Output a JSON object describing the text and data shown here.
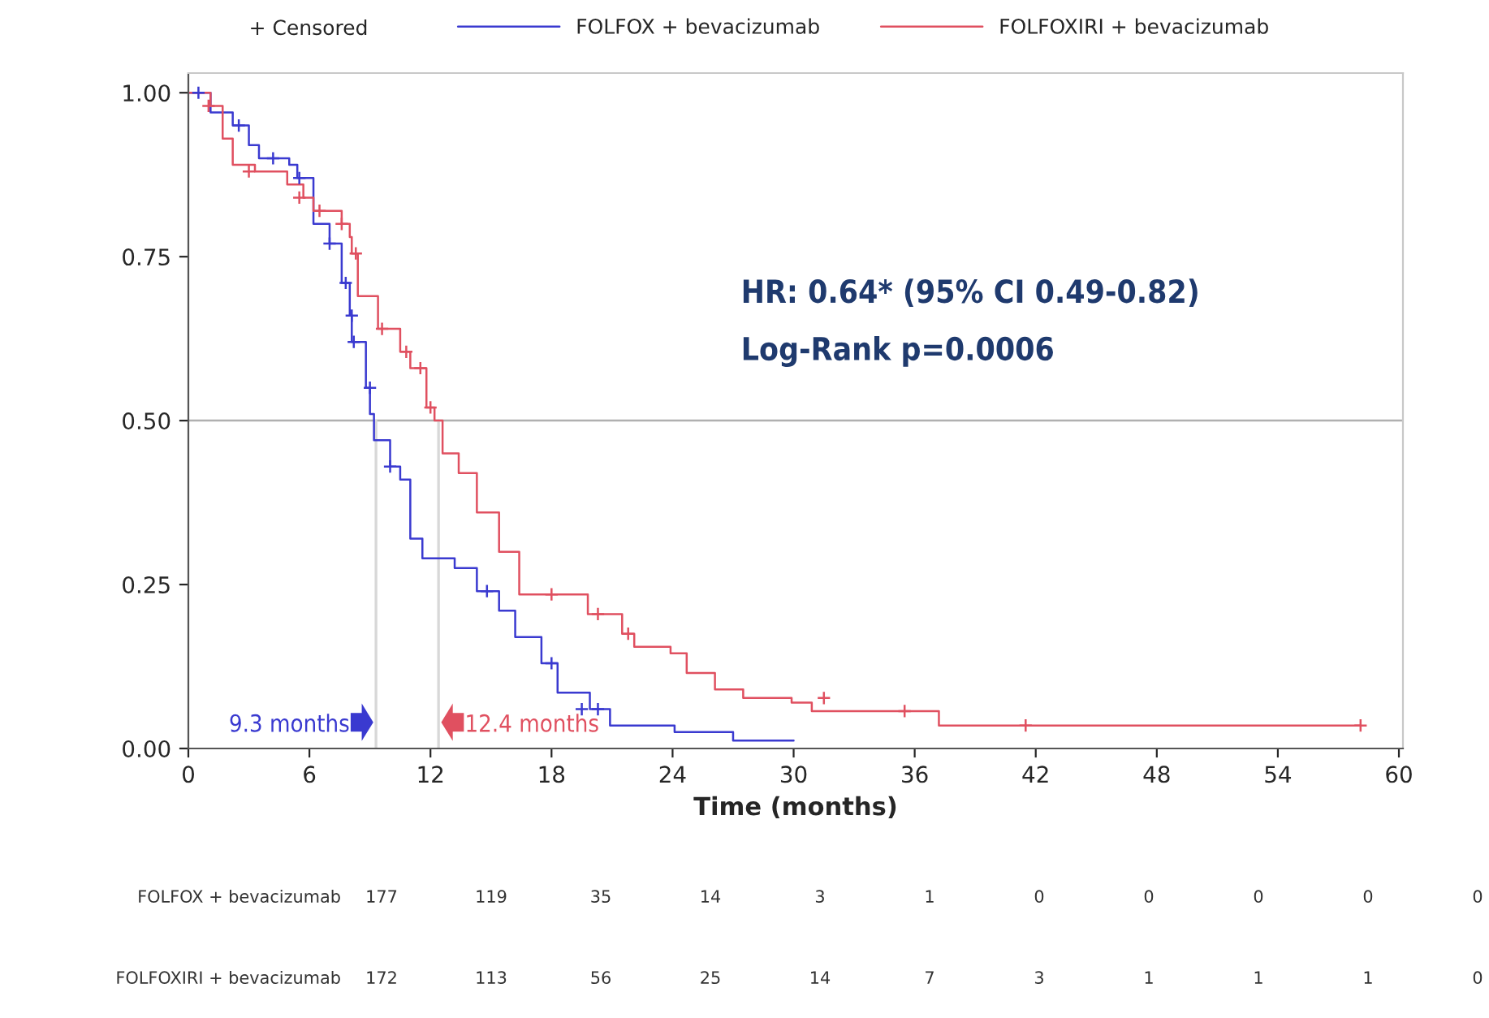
{
  "chart_data": {
    "type": "step",
    "xlabel": "Time (months)",
    "xlim": [
      0,
      60.2
    ],
    "xticks": [
      0,
      6,
      12,
      18,
      24,
      30,
      36,
      42,
      48,
      54,
      60
    ],
    "ylim": [
      0,
      1.03
    ],
    "yticks": [
      {
        "value": 0,
        "label": "0.00"
      },
      {
        "value": 0.25,
        "label": "0.25"
      },
      {
        "value": 0.5,
        "label": "0.50"
      },
      {
        "value": 0.75,
        "label": "0.75"
      },
      {
        "value": 1,
        "label": "1.00"
      }
    ],
    "grid": false,
    "legend": "top",
    "series": [
      {
        "name": "FOLFOX + bevacizumab",
        "color": "#3a3ad0",
        "x": [
          0,
          1.1,
          2.2,
          3.0,
          3.5,
          5.0,
          5.4,
          6.2,
          7.0,
          7.6,
          8.0,
          8.1,
          8.8,
          9.0,
          9.2,
          10.0,
          10.5,
          11.0,
          11.6,
          13.2,
          14.3,
          15.4,
          16.2,
          17.5,
          18.3,
          19.9,
          20.9,
          24.1,
          27.0,
          30.0
        ],
        "values": [
          1.0,
          0.97,
          0.95,
          0.92,
          0.9,
          0.89,
          0.87,
          0.8,
          0.77,
          0.71,
          0.66,
          0.62,
          0.55,
          0.51,
          0.47,
          0.43,
          0.41,
          0.32,
          0.29,
          0.275,
          0.24,
          0.21,
          0.17,
          0.13,
          0.085,
          0.06,
          0.035,
          0.025,
          0.012,
          0.012
        ]
      },
      {
        "name": "FOLFOXIRI + bevacizumab",
        "color": "#e05060",
        "x": [
          0,
          1.1,
          1.7,
          2.2,
          3.3,
          4.9,
          5.7,
          6.2,
          7.6,
          8.0,
          8.1,
          8.4,
          9.4,
          10.5,
          11.0,
          11.8,
          12.2,
          12.6,
          13.4,
          14.3,
          15.4,
          16.4,
          19.8,
          21.5,
          22.1,
          23.9,
          24.7,
          26.1,
          27.5,
          29.9,
          30.9,
          37.2,
          58.1
        ],
        "values": [
          1.0,
          0.98,
          0.93,
          0.89,
          0.88,
          0.86,
          0.84,
          0.82,
          0.8,
          0.78,
          0.755,
          0.69,
          0.64,
          0.605,
          0.58,
          0.52,
          0.5,
          0.45,
          0.42,
          0.36,
          0.3,
          0.235,
          0.205,
          0.175,
          0.155,
          0.145,
          0.115,
          0.09,
          0.077,
          0.07,
          0.057,
          0.035,
          0.035
        ]
      },
      {
        "color": "#3a3ad0",
        "type": "scatter",
        "marker": "cross",
        "x": [
          0.5,
          2.5,
          4.2,
          5.5,
          7.0,
          7.8,
          8.1,
          8.2,
          9.0,
          10.0,
          14.8,
          18.0,
          19.5,
          20.3
        ],
        "values": [
          1.0,
          0.95,
          0.9,
          0.87,
          0.77,
          0.71,
          0.66,
          0.62,
          0.55,
          0.43,
          0.24,
          0.13,
          0.06,
          0.06
        ]
      },
      {
        "color": "#e05060",
        "type": "scatter",
        "marker": "cross",
        "x": [
          1.0,
          3.0,
          5.5,
          6.5,
          7.6,
          8.3,
          9.6,
          10.8,
          11.5,
          12.0,
          18.0,
          20.3,
          21.8,
          31.5,
          35.5,
          41.5,
          58.1
        ],
        "values": [
          0.98,
          0.88,
          0.84,
          0.82,
          0.8,
          0.755,
          0.64,
          0.605,
          0.58,
          0.52,
          0.235,
          0.205,
          0.175,
          0.077,
          0.057,
          0.035,
          0.035
        ]
      }
    ],
    "ref_lines": [
      {
        "axis": "y",
        "value": 0.5,
        "color": "#b0b0b0"
      },
      {
        "axis": "x",
        "value": 9.3,
        "color": "#d8d8d8"
      },
      {
        "axis": "x",
        "value": 12.4,
        "color": "#d8d8d8"
      }
    ],
    "annotations": [
      "HR: 0.64* (95% CI 0.49-0.82)",
      "Log-Rank p=0.0006",
      "+ Censored",
      {
        "text": "9.3 months",
        "x": 9.3,
        "y": 0
      },
      {
        "text": "12.4 months",
        "x": 12.4,
        "y": 0
      },
      "FOLFOX + bevacizumab",
      "177",
      "119",
      "35",
      "14",
      "3",
      "1",
      "0",
      "0",
      "0",
      "0",
      "0",
      "FOLFOXIRI + bevacizumab",
      "172",
      "113",
      "56",
      "25",
      "14",
      "7",
      "3",
      "1",
      "1",
      "1",
      "0"
    ]
  }
}
